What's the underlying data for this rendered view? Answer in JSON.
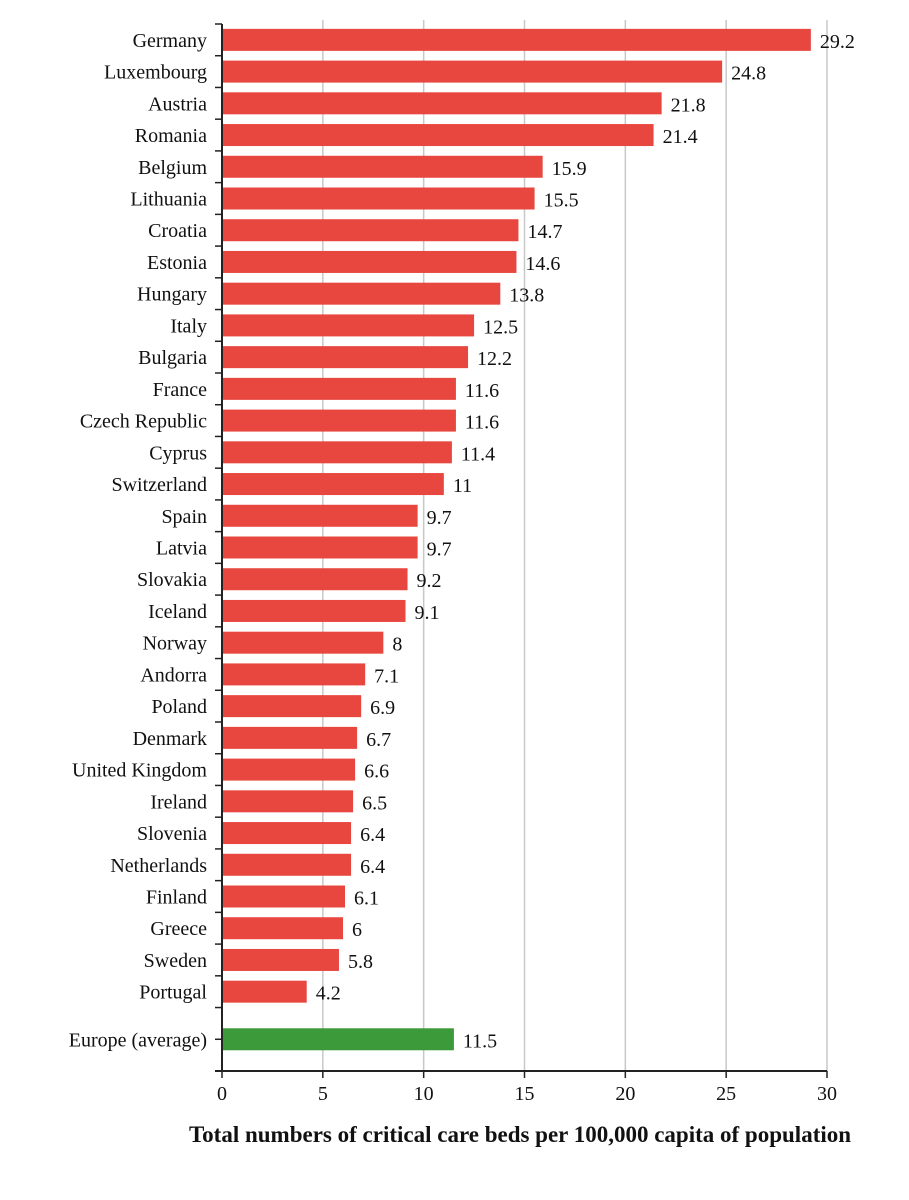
{
  "chart_data": {
    "type": "bar",
    "orientation": "horizontal",
    "categories": [
      "Germany",
      "Luxembourg",
      "Austria",
      "Romania",
      "Belgium",
      "Lithuania",
      "Croatia",
      "Estonia",
      "Hungary",
      "Italy",
      "Bulgaria",
      "France",
      "Czech Republic",
      "Cyprus",
      "Switzerland",
      "Spain",
      "Latvia",
      "Slovakia",
      "Iceland",
      "Norway",
      "Andorra",
      "Poland",
      "Denmark",
      "United Kingdom",
      "Ireland",
      "Slovenia",
      "Netherlands",
      "Finland",
      "Greece",
      "Sweden",
      "Portugal",
      "Europe (average)"
    ],
    "values": [
      29.2,
      24.8,
      21.8,
      21.4,
      15.9,
      15.5,
      14.7,
      14.6,
      13.8,
      12.5,
      12.2,
      11.6,
      11.6,
      11.4,
      11,
      9.7,
      9.7,
      9.2,
      9.1,
      8,
      7.1,
      6.9,
      6.7,
      6.6,
      6.5,
      6.4,
      6.4,
      6.1,
      6,
      5.8,
      4.2,
      11.5
    ],
    "value_labels": [
      "29.2",
      "24.8",
      "21.8",
      "21.4",
      "15.9",
      "15.5",
      "14.7",
      "14.6",
      "13.8",
      "12.5",
      "12.2",
      "11.6",
      "11.6",
      "11.4",
      "11",
      "9.7",
      "9.7",
      "9.2",
      "9.1",
      "8",
      "7.1",
      "6.9",
      "6.7",
      "6.6",
      "6.5",
      "6.4",
      "6.4",
      "6.1",
      "6",
      "5.8",
      "4.2",
      "11.5"
    ],
    "highlight_category": "Europe (average)",
    "xlabel": "Total numbers of critical care beds per 100,000 capita of population",
    "xlim": [
      0,
      30
    ],
    "xticks": [
      "0",
      "5",
      "10",
      "15",
      "20",
      "25",
      "30"
    ],
    "grid": "vertical",
    "colors": {
      "bar": "#e8473f",
      "highlight": "#3d9a3a",
      "grid": "#c8c8c8",
      "axis": "#222222"
    }
  }
}
